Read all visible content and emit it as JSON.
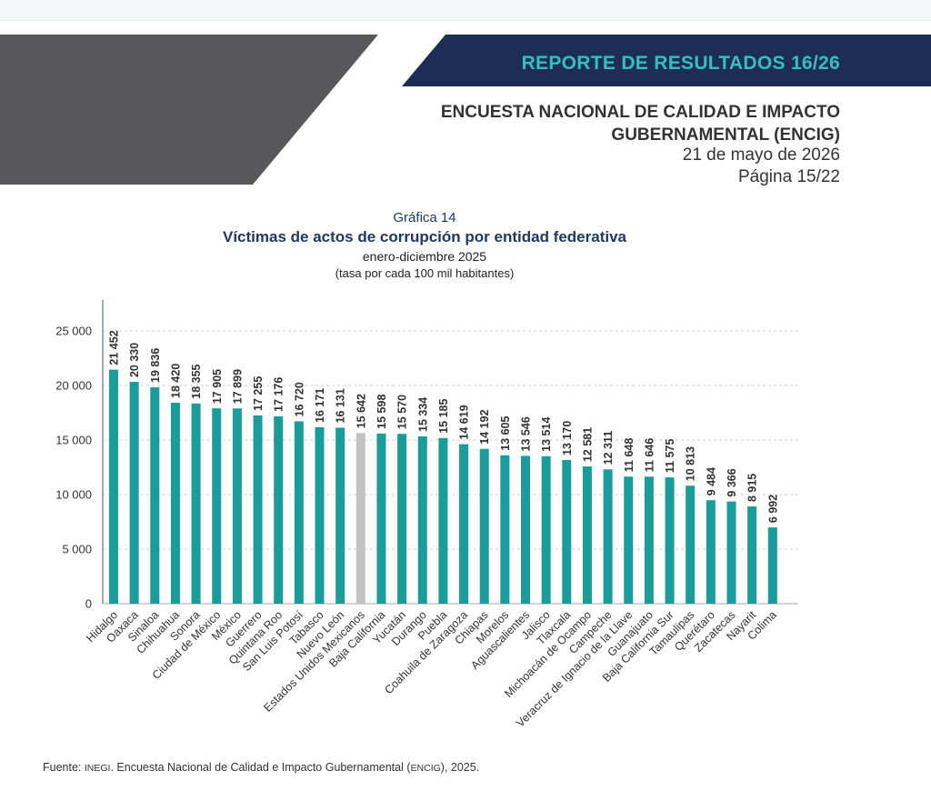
{
  "header": {
    "report_title": "REPORTE DE RESULTADOS 16/26",
    "survey_title": "ENCUESTA NACIONAL DE CALIDAD E IMPACTO GUBERNAMENTAL (ENCIG)",
    "date": "21 de mayo de 2026",
    "page": "Página 15/22"
  },
  "colors": {
    "banner_gray": "#58585b",
    "banner_navy": "#1e2d56",
    "report_title": "#35bfbd",
    "bar": "#1a9c9a",
    "bar_national": "#c2c2c2",
    "chart_title": "#1f3864"
  },
  "chart_data": {
    "type": "bar",
    "label": "Gráfica 14",
    "title": "Víctimas de actos de corrupción por entidad federativa",
    "subtitle": "enero-diciembre 2025",
    "units": "(tasa por cada 100 mil habitantes)",
    "categories": [
      "Hidalgo",
      "Oaxaca",
      "Sinaloa",
      "Chihuahua",
      "Sonora",
      "Ciudad de México",
      "México",
      "Guerrero",
      "Quintana Roo",
      "San Luis Potosí",
      "Tabasco",
      "Nuevo León",
      "Estados Unidos Mexicanos",
      "Baja California",
      "Yucatán",
      "Durango",
      "Puebla",
      "Coahuila de Zaragoza",
      "Chiapas",
      "Morelos",
      "Aguascalientes",
      "Jalisco",
      "Tlaxcala",
      "Michoacán de Ocampo",
      "Campeche",
      "Veracruz de Ignacio de la Llave",
      "Guanajuato",
      "Baja California Sur",
      "Tamaulipas",
      "Querétaro",
      "Zacatecas",
      "Nayarit",
      "Colima"
    ],
    "values": [
      21452,
      20330,
      19836,
      18420,
      18355,
      17905,
      17899,
      17255,
      17176,
      16720,
      16171,
      16131,
      15642,
      15598,
      15570,
      15334,
      15185,
      14619,
      14192,
      13605,
      13546,
      13514,
      13170,
      12581,
      12311,
      11648,
      11646,
      11575,
      10813,
      9484,
      9366,
      8915,
      6992
    ],
    "value_labels": [
      "21 452",
      "20 330",
      "19 836",
      "18 420",
      "18 355",
      "17 905",
      "17 899",
      "17 255",
      "17 176",
      "16 720",
      "16 171",
      "16 131",
      "15 642",
      "15 598",
      "15 570",
      "15 334",
      "15 185",
      "14 619",
      "14 192",
      "13 605",
      "13 546",
      "13 514",
      "13 170",
      "12 581",
      "12 311",
      "11 648",
      "11 646",
      "11 575",
      "10 813",
      "9 484",
      "9 366",
      "8 915",
      "6 992"
    ],
    "highlight_category": "Estados Unidos Mexicanos",
    "ylim": [
      0,
      25000
    ],
    "yticks": [
      0,
      5000,
      10000,
      15000,
      20000,
      25000
    ],
    "ytick_labels": [
      "0",
      "5 000",
      "10 000",
      "15 000",
      "20 000",
      "25 000"
    ],
    "grid": true
  },
  "footer": {
    "prefix": "Fuente:",
    "org": "INEGI",
    "text_before": ". Encuesta Nacional de Calidad e Impacto Gubernamental (",
    "acronym": "ENCIG",
    "text_after": "), 2025."
  }
}
